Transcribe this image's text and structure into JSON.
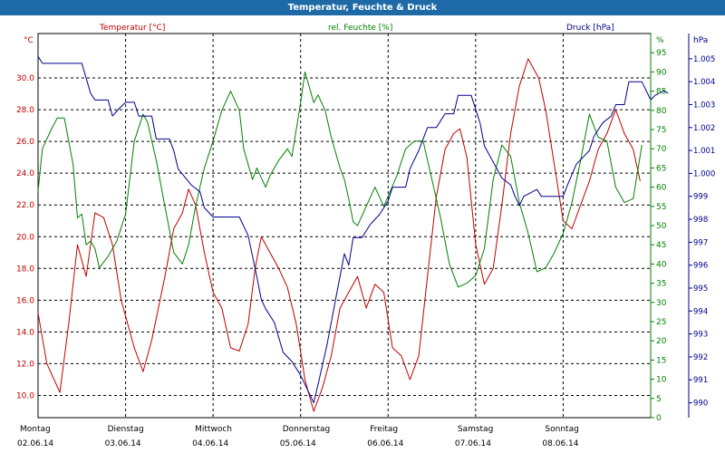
{
  "chart_data": {
    "type": "line",
    "title": "Temperatur, Feuchte & Druck",
    "x_categories": [
      {
        "day": "Montag",
        "date": "02.06.14"
      },
      {
        "day": "Dienstag",
        "date": "03.06.14"
      },
      {
        "day": "Mittwoch",
        "date": "04.06.14"
      },
      {
        "day": "Donnerstag",
        "date": "05.06.14"
      },
      {
        "day": "Freitag",
        "date": "06.06.14"
      },
      {
        "day": "Samstag",
        "date": "07.06.14"
      },
      {
        "day": "Sonntag",
        "date": "08.06.14"
      }
    ],
    "x_range": [
      0,
      7
    ],
    "grid": true,
    "axes": {
      "temperature": {
        "label": "Temperatur [°C]",
        "unit": "°C",
        "range": [
          8.6,
          32.8
        ],
        "ticks": [
          "10.0",
          "12.0",
          "14.0",
          "16.0",
          "18.0",
          "20.0",
          "22.0",
          "24.0",
          "26.0",
          "28.0",
          "30.0"
        ],
        "color": "#c00000"
      },
      "humidity": {
        "label": "rel. Feuchte [%]",
        "unit": "%",
        "range": [
          0,
          100
        ],
        "ticks": [
          "0",
          "5",
          "10",
          "15",
          "20",
          "25",
          "30",
          "35",
          "40",
          "45",
          "50",
          "55",
          "60",
          "65",
          "70",
          "75",
          "80",
          "85",
          "90",
          "95"
        ],
        "color": "#008000"
      },
      "pressure": {
        "label": "Druck [hPa]",
        "unit": "hPa",
        "range": [
          989.35,
          1006.1
        ],
        "ticks": [
          "990",
          "991",
          "992",
          "993",
          "994",
          "995",
          "996",
          "997",
          "998",
          "999",
          "1.000",
          "1.001",
          "1.002",
          "1.003",
          "1.004",
          "1.005"
        ],
        "color": "#00008b"
      }
    },
    "series": [
      {
        "name": "Temperatur [°C]",
        "axis": "temperature",
        "color": "#c00000",
        "points": [
          [
            0,
            15.2
          ],
          [
            0.1,
            12.0
          ],
          [
            0.25,
            10.2
          ],
          [
            0.35,
            14.5
          ],
          [
            0.45,
            19.5
          ],
          [
            0.55,
            17.5
          ],
          [
            0.65,
            21.5
          ],
          [
            0.75,
            21.2
          ],
          [
            0.85,
            19.5
          ],
          [
            0.95,
            16.0
          ],
          [
            1.1,
            13.0
          ],
          [
            1.2,
            11.5
          ],
          [
            1.3,
            13.5
          ],
          [
            1.45,
            17.5
          ],
          [
            1.55,
            20.5
          ],
          [
            1.65,
            21.5
          ],
          [
            1.72,
            23.0
          ],
          [
            1.8,
            22.0
          ],
          [
            1.9,
            19.0
          ],
          [
            2.0,
            16.5
          ],
          [
            2.1,
            15.5
          ],
          [
            2.2,
            13.0
          ],
          [
            2.3,
            12.8
          ],
          [
            2.4,
            14.5
          ],
          [
            2.48,
            18.0
          ],
          [
            2.55,
            20.0
          ],
          [
            2.65,
            19.0
          ],
          [
            2.75,
            18.0
          ],
          [
            2.85,
            16.8
          ],
          [
            2.95,
            14.5
          ],
          [
            3.05,
            11.0
          ],
          [
            3.15,
            9.0
          ],
          [
            3.25,
            10.5
          ],
          [
            3.35,
            12.5
          ],
          [
            3.45,
            15.5
          ],
          [
            3.55,
            16.5
          ],
          [
            3.65,
            17.5
          ],
          [
            3.75,
            15.5
          ],
          [
            3.85,
            17.0
          ],
          [
            3.95,
            16.5
          ],
          [
            4.05,
            13.0
          ],
          [
            4.15,
            12.5
          ],
          [
            4.25,
            11.0
          ],
          [
            4.35,
            12.5
          ],
          [
            4.45,
            17.5
          ],
          [
            4.55,
            22.5
          ],
          [
            4.65,
            25.5
          ],
          [
            4.75,
            26.5
          ],
          [
            4.82,
            26.8
          ],
          [
            4.9,
            25.0
          ],
          [
            5.0,
            19.5
          ],
          [
            5.1,
            17.0
          ],
          [
            5.2,
            18.0
          ],
          [
            5.3,
            22.0
          ],
          [
            5.4,
            26.5
          ],
          [
            5.5,
            29.5
          ],
          [
            5.6,
            31.2
          ],
          [
            5.72,
            30.0
          ],
          [
            5.8,
            28.0
          ],
          [
            5.9,
            24.5
          ],
          [
            6.0,
            21.0
          ],
          [
            6.1,
            20.5
          ],
          [
            6.2,
            22.0
          ],
          [
            6.3,
            23.5
          ],
          [
            6.4,
            25.5
          ],
          [
            6.5,
            26.5
          ],
          [
            6.6,
            28.0
          ],
          [
            6.7,
            26.5
          ],
          [
            6.8,
            25.5
          ],
          [
            6.88,
            23.5
          ]
        ]
      },
      {
        "name": "rel. Feuchte [%]",
        "axis": "humidity",
        "color": "#008000",
        "points": [
          [
            0,
            59
          ],
          [
            0.05,
            70
          ],
          [
            0.15,
            75
          ],
          [
            0.22,
            78
          ],
          [
            0.3,
            78
          ],
          [
            0.4,
            66
          ],
          [
            0.45,
            52
          ],
          [
            0.5,
            53
          ],
          [
            0.55,
            45
          ],
          [
            0.6,
            46
          ],
          [
            0.65,
            44
          ],
          [
            0.7,
            39
          ],
          [
            0.8,
            42
          ],
          [
            0.9,
            46
          ],
          [
            1.0,
            53
          ],
          [
            1.1,
            72
          ],
          [
            1.2,
            79
          ],
          [
            1.25,
            77
          ],
          [
            1.35,
            67
          ],
          [
            1.45,
            55
          ],
          [
            1.55,
            43
          ],
          [
            1.65,
            40
          ],
          [
            1.72,
            45
          ],
          [
            1.8,
            55
          ],
          [
            1.9,
            65
          ],
          [
            2.0,
            72
          ],
          [
            2.1,
            80
          ],
          [
            2.2,
            85
          ],
          [
            2.3,
            80
          ],
          [
            2.35,
            70
          ],
          [
            2.45,
            62
          ],
          [
            2.5,
            65
          ],
          [
            2.6,
            60
          ],
          [
            2.65,
            63
          ],
          [
            2.75,
            67
          ],
          [
            2.85,
            70
          ],
          [
            2.9,
            68
          ],
          [
            3.0,
            82
          ],
          [
            3.05,
            90
          ],
          [
            3.1,
            86
          ],
          [
            3.15,
            82
          ],
          [
            3.2,
            84
          ],
          [
            3.28,
            80
          ],
          [
            3.35,
            73
          ],
          [
            3.45,
            65
          ],
          [
            3.5,
            62
          ],
          [
            3.55,
            57
          ],
          [
            3.6,
            51
          ],
          [
            3.65,
            50
          ],
          [
            3.75,
            55
          ],
          [
            3.85,
            60
          ],
          [
            3.95,
            55
          ],
          [
            4.1,
            63
          ],
          [
            4.2,
            70
          ],
          [
            4.3,
            72
          ],
          [
            4.4,
            72
          ],
          [
            4.5,
            62
          ],
          [
            4.6,
            52
          ],
          [
            4.7,
            40
          ],
          [
            4.8,
            34
          ],
          [
            4.9,
            35
          ],
          [
            5.0,
            37
          ],
          [
            5.1,
            44
          ],
          [
            5.2,
            62
          ],
          [
            5.3,
            71
          ],
          [
            5.4,
            68
          ],
          [
            5.5,
            56
          ],
          [
            5.6,
            48
          ],
          [
            5.7,
            38
          ],
          [
            5.8,
            39
          ],
          [
            5.9,
            43
          ],
          [
            6.0,
            48
          ],
          [
            6.1,
            56
          ],
          [
            6.2,
            67
          ],
          [
            6.3,
            79
          ],
          [
            6.35,
            76
          ],
          [
            6.4,
            73
          ],
          [
            6.5,
            72
          ],
          [
            6.6,
            60
          ],
          [
            6.7,
            56
          ],
          [
            6.8,
            57
          ],
          [
            6.9,
            71
          ]
        ]
      },
      {
        "name": "Druck [hPa]",
        "axis": "pressure",
        "color": "#00008b",
        "points": [
          [
            0,
            1005.1
          ],
          [
            0.05,
            1004.8
          ],
          [
            0.5,
            1004.8
          ],
          [
            0.6,
            1003.5
          ],
          [
            0.65,
            1003.2
          ],
          [
            0.8,
            1003.2
          ],
          [
            0.85,
            1002.5
          ],
          [
            0.92,
            1002.8
          ],
          [
            1.0,
            1003.1
          ],
          [
            1.1,
            1003.1
          ],
          [
            1.15,
            1002.5
          ],
          [
            1.3,
            1002.5
          ],
          [
            1.35,
            1001.5
          ],
          [
            1.5,
            1001.5
          ],
          [
            1.55,
            1001.0
          ],
          [
            1.6,
            1000.2
          ],
          [
            1.75,
            999.5
          ],
          [
            1.85,
            999.2
          ],
          [
            1.9,
            998.5
          ],
          [
            2.0,
            998.1
          ],
          [
            2.3,
            998.1
          ],
          [
            2.4,
            997.3
          ],
          [
            2.5,
            995.5
          ],
          [
            2.55,
            994.5
          ],
          [
            2.6,
            994.1
          ],
          [
            2.7,
            993.5
          ],
          [
            2.8,
            992.2
          ],
          [
            2.9,
            991.8
          ],
          [
            3.0,
            991.2
          ],
          [
            3.05,
            990.8
          ],
          [
            3.15,
            990.0
          ],
          [
            3.2,
            990.8
          ],
          [
            3.3,
            992.5
          ],
          [
            3.4,
            994.5
          ],
          [
            3.5,
            996.5
          ],
          [
            3.55,
            996.0
          ],
          [
            3.6,
            997.2
          ],
          [
            3.7,
            997.2
          ],
          [
            3.8,
            997.8
          ],
          [
            3.9,
            998.2
          ],
          [
            4.0,
            998.8
          ],
          [
            4.05,
            999.4
          ],
          [
            4.2,
            999.4
          ],
          [
            4.25,
            1000.2
          ],
          [
            4.35,
            1001.0
          ],
          [
            4.45,
            1002.0
          ],
          [
            4.55,
            1002.0
          ],
          [
            4.65,
            1002.6
          ],
          [
            4.75,
            1002.6
          ],
          [
            4.8,
            1003.4
          ],
          [
            4.95,
            1003.4
          ],
          [
            5.05,
            1002.2
          ],
          [
            5.1,
            1001.2
          ],
          [
            5.2,
            1000.5
          ],
          [
            5.3,
            999.8
          ],
          [
            5.4,
            999.5
          ],
          [
            5.45,
            999.0
          ],
          [
            5.5,
            998.6
          ],
          [
            5.55,
            999.0
          ],
          [
            5.7,
            999.3
          ],
          [
            5.75,
            999.0
          ],
          [
            6.0,
            999.0
          ],
          [
            6.05,
            999.5
          ],
          [
            6.15,
            1000.4
          ],
          [
            6.3,
            1001.0
          ],
          [
            6.35,
            1001.6
          ],
          [
            6.45,
            1002.2
          ],
          [
            6.55,
            1002.5
          ],
          [
            6.6,
            1003.0
          ],
          [
            6.7,
            1003.0
          ],
          [
            6.75,
            1004.0
          ],
          [
            6.9,
            1004.0
          ],
          [
            6.95,
            1003.6
          ],
          [
            7.0,
            1003.2
          ],
          [
            7.05,
            1003.4
          ],
          [
            7.15,
            1003.6
          ],
          [
            7.2,
            1003.5
          ]
        ]
      }
    ]
  }
}
